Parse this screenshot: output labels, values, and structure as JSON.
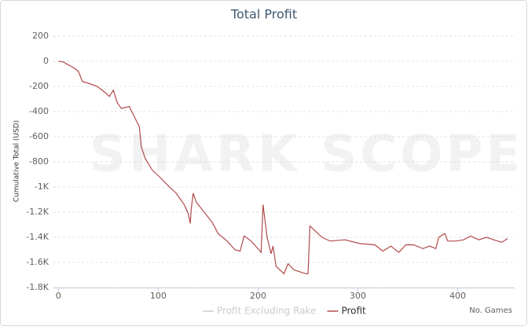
{
  "chart_data": {
    "type": "line",
    "title": "Total Profit",
    "y_label": "Cumulative Total (USD)",
    "x_label": "No. Games",
    "watermark": "SHARK SCOPE",
    "xlim": [
      -5,
      457
    ],
    "xticks": [
      0,
      100,
      200,
      300,
      400
    ],
    "ylim": [
      -1800,
      200
    ],
    "yticks": [
      200,
      0,
      -200,
      -400,
      -600,
      -800,
      {
        "value": -1000,
        "label": "-1K"
      },
      {
        "value": -1200,
        "label": "-1.2K"
      },
      {
        "value": -1400,
        "label": "-1.4K"
      },
      {
        "value": -1600,
        "label": "-1.6K"
      },
      {
        "value": -1800,
        "label": "-1.8K"
      }
    ],
    "grid": true,
    "x": [
      0,
      5,
      8,
      15,
      20,
      24,
      30,
      39,
      47,
      51,
      55,
      59,
      63,
      71,
      76,
      81,
      83,
      87,
      94,
      102,
      110,
      118,
      126,
      130,
      132,
      133,
      135,
      138,
      146,
      154,
      160,
      169,
      177,
      182,
      186,
      193,
      201,
      203,
      205,
      209,
      213,
      215,
      218,
      226,
      230,
      236,
      248,
      250,
      252,
      256,
      264,
      272,
      287,
      302,
      317,
      325,
      333,
      341,
      348,
      356,
      365,
      372,
      378,
      381,
      387,
      390,
      398,
      406,
      413,
      421,
      429,
      436,
      444,
      450
    ],
    "series": [
      {
        "name": "Profit Excluding Rake",
        "color": "#cccccc",
        "hidden": true
      },
      {
        "name": "Profit",
        "color": "#b24a4a",
        "values": [
          0,
          -5,
          -20,
          -50,
          -80,
          -160,
          -175,
          -200,
          -250,
          -280,
          -230,
          -330,
          -375,
          -360,
          -440,
          -520,
          -680,
          -775,
          -865,
          -925,
          -990,
          -1050,
          -1140,
          -1210,
          -1290,
          -1180,
          -1050,
          -1120,
          -1200,
          -1280,
          -1370,
          -1430,
          -1500,
          -1510,
          -1390,
          -1430,
          -1500,
          -1520,
          -1140,
          -1400,
          -1530,
          -1470,
          -1630,
          -1690,
          -1610,
          -1660,
          -1690,
          -1690,
          -1310,
          -1340,
          -1400,
          -1430,
          -1420,
          -1450,
          -1460,
          -1510,
          -1470,
          -1520,
          -1460,
          -1460,
          -1490,
          -1470,
          -1490,
          -1400,
          -1370,
          -1430,
          -1430,
          -1420,
          -1390,
          -1420,
          -1400,
          -1420,
          -1440,
          -1410
        ]
      }
    ]
  }
}
